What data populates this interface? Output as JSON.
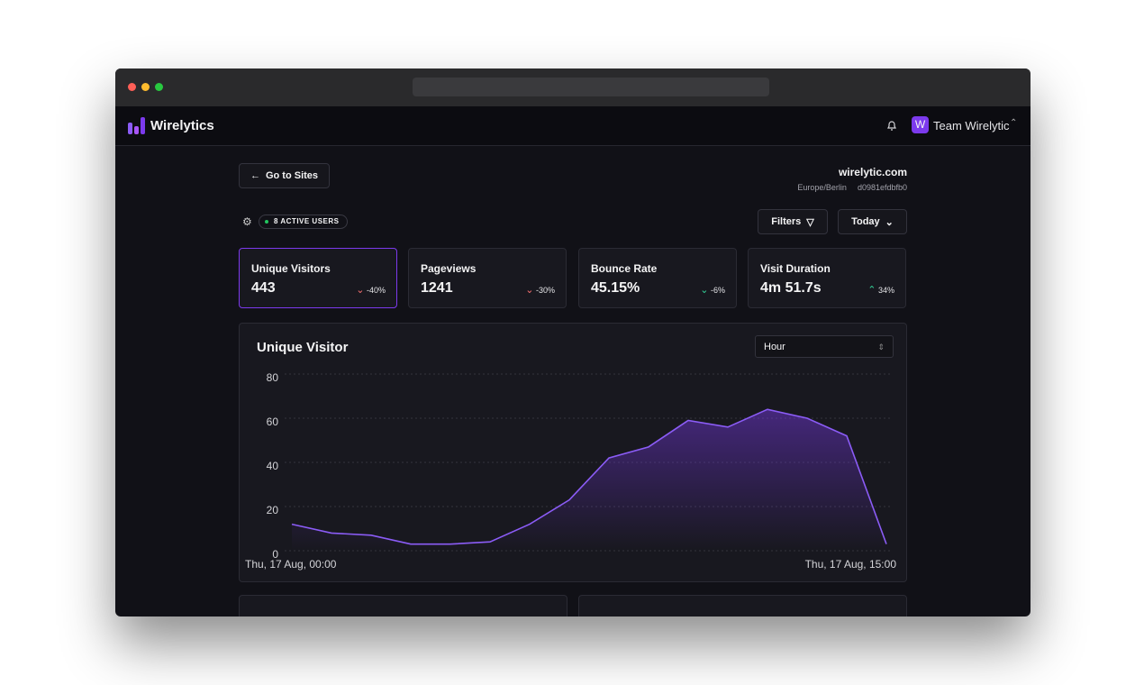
{
  "header": {
    "brand": "Wirelytics",
    "avatar": "W",
    "team": "Team Wirelytic"
  },
  "site": {
    "back": "Go to Sites",
    "domain": "wirelytic.com",
    "timezone": "Europe/Berlin",
    "id": "d0981efdbfb0"
  },
  "toolbar": {
    "active_users": "8 ACTIVE USERS",
    "filters": "Filters",
    "range": "Today"
  },
  "stats": [
    {
      "title": "Unique Visitors",
      "value": "443",
      "change": "-40%"
    },
    {
      "title": "Pageviews",
      "value": "1241",
      "change": "-30%"
    },
    {
      "title": "Bounce Rate",
      "value": "45.15%",
      "change": "-6%"
    },
    {
      "title": "Visit Duration",
      "value": "4m 51.7s",
      "change": "34%"
    }
  ],
  "chart_data": {
    "type": "area",
    "title": "Unique Visitor",
    "interval": "Hour",
    "categories": [
      "Thu, 17 Aug, 00:00",
      null,
      null,
      null,
      null,
      null,
      null,
      null,
      null,
      null,
      null,
      null,
      null,
      null,
      null,
      "Thu, 17 Aug, 15:00"
    ],
    "values": [
      12,
      8,
      7,
      3,
      3,
      4,
      12,
      23,
      42,
      47,
      59,
      56,
      64,
      60,
      52,
      3
    ],
    "color": "#8b5cf6",
    "ylim": [
      0,
      80
    ],
    "yticks": [
      0,
      20,
      40,
      60,
      80
    ],
    "grid": true
  }
}
